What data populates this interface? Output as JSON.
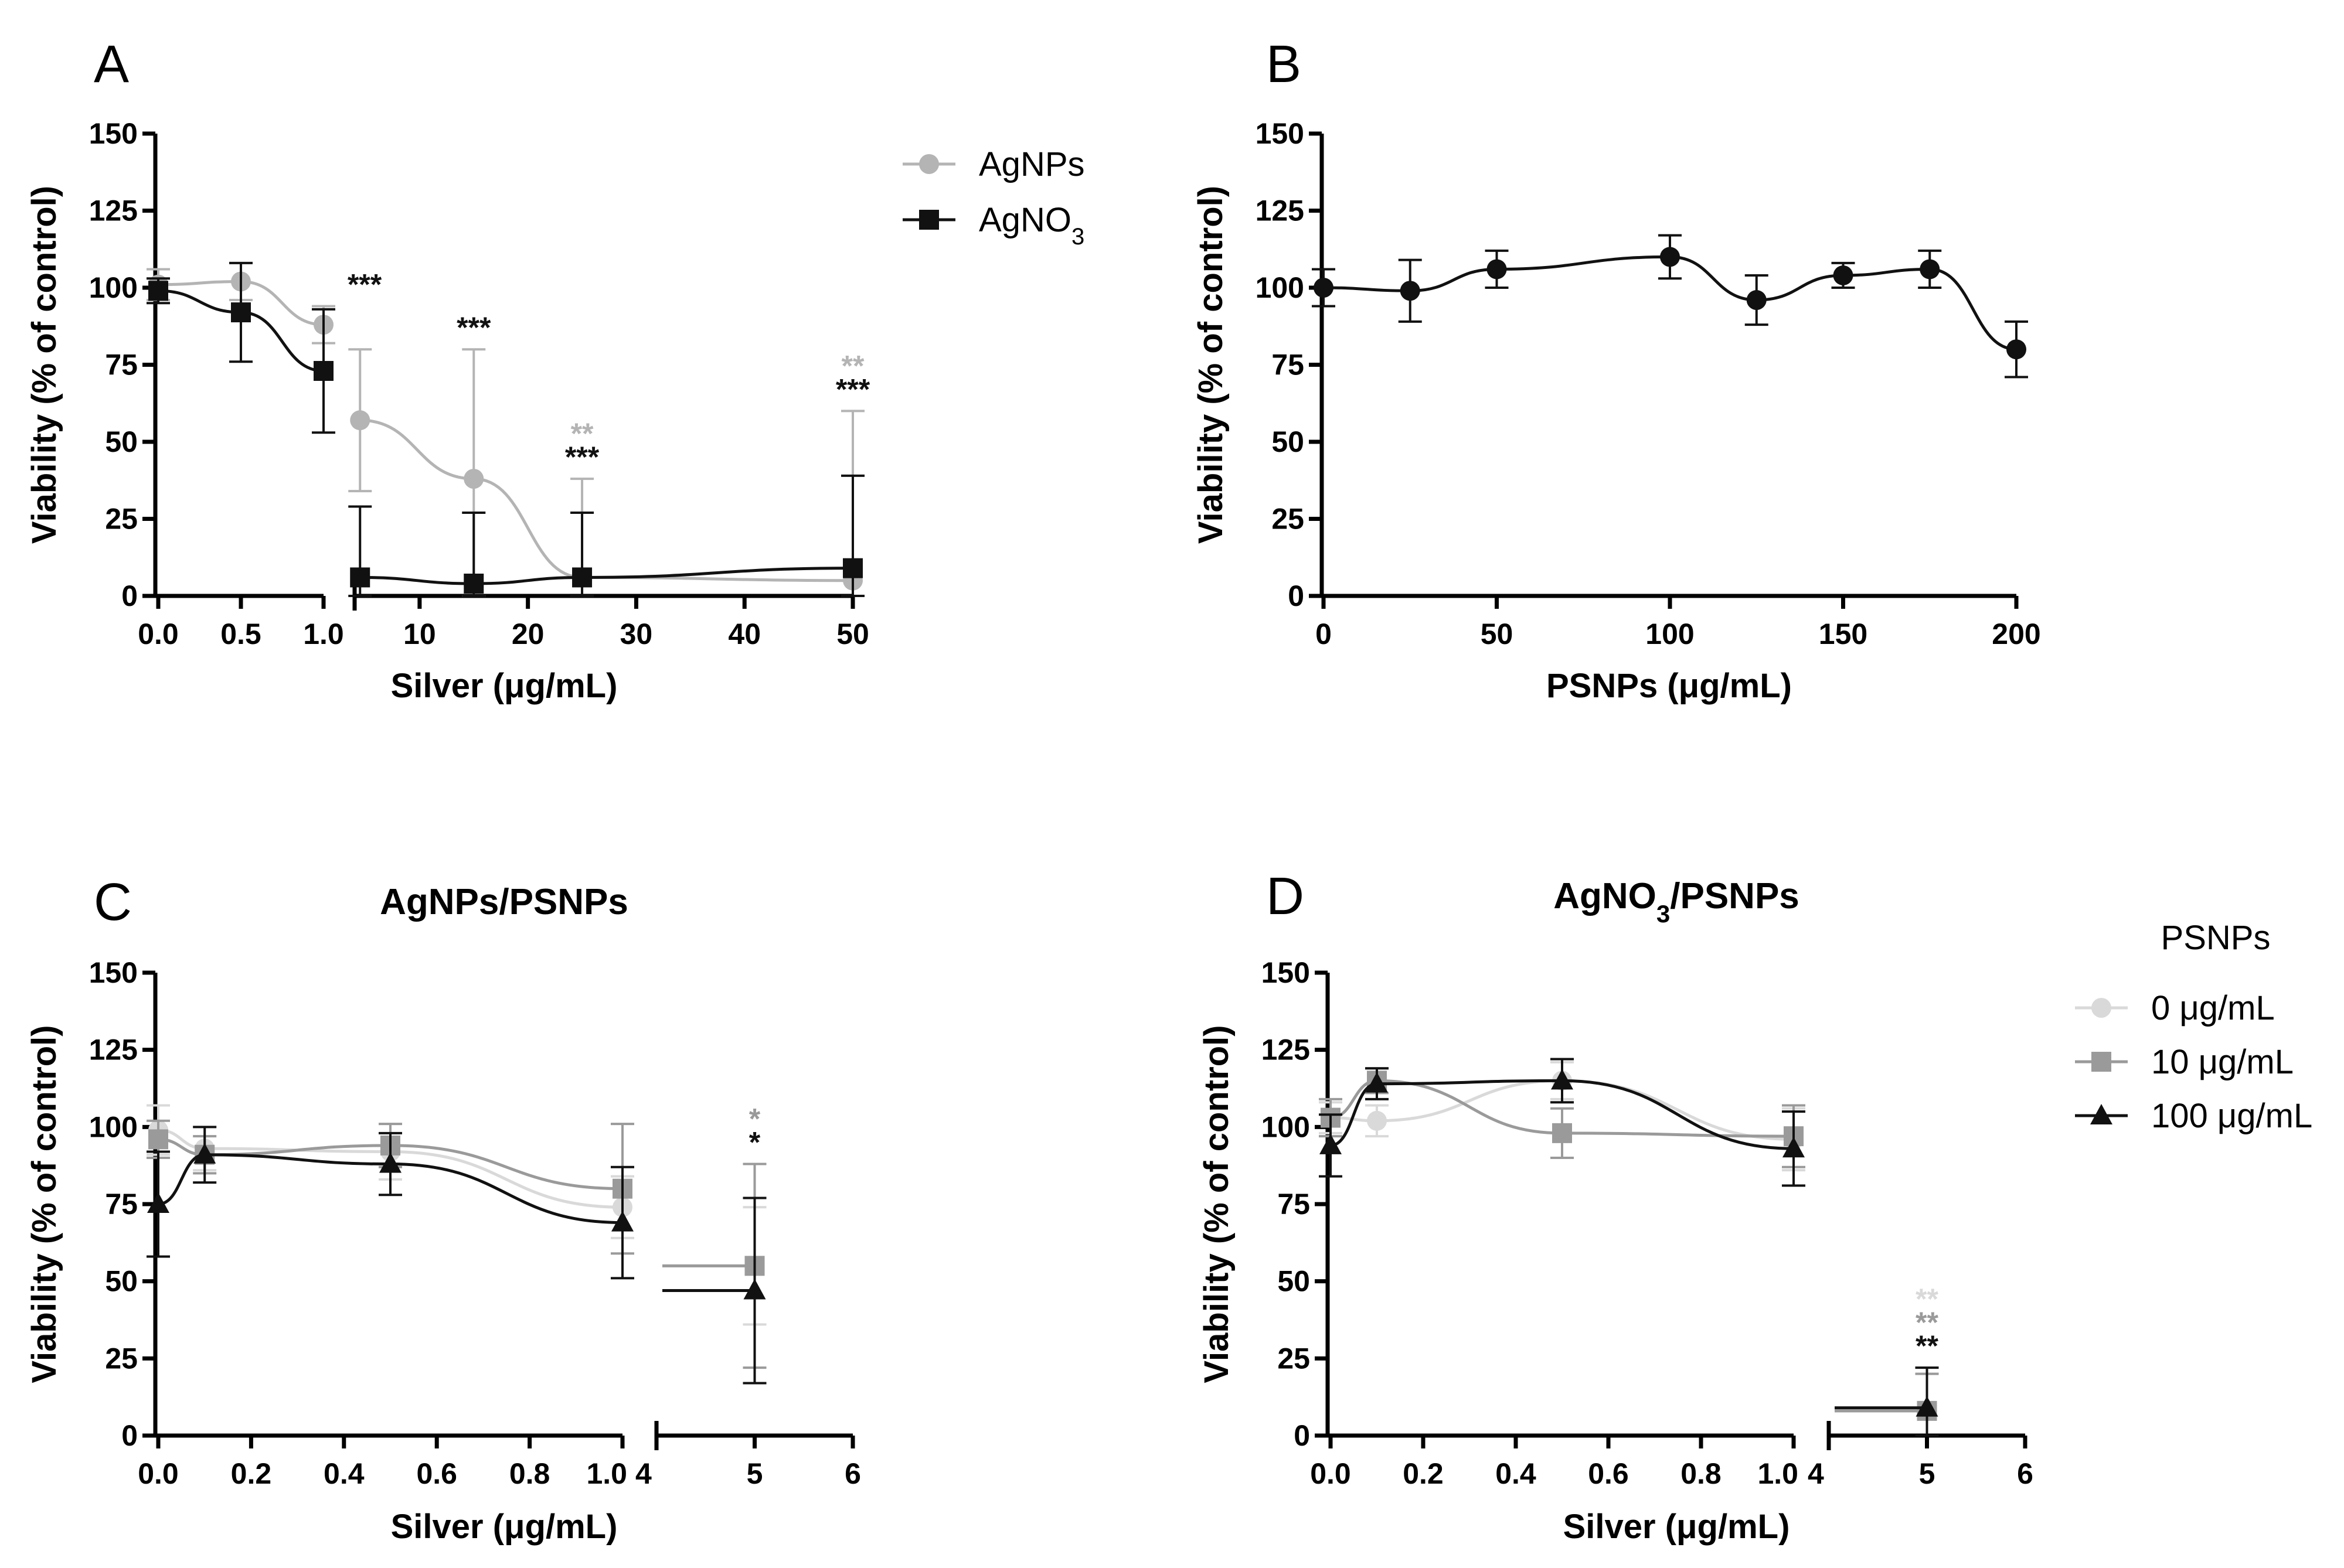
{
  "chart_data": [
    {
      "panel": "A",
      "type": "scatter",
      "title": "",
      "ylabel": "Viability (% of control)",
      "xlabel_parts": [
        "Silver (",
        "μg/mL)"
      ],
      "yticks": [
        "0",
        "25",
        "50",
        "75",
        "100",
        "125",
        "150"
      ],
      "ylim": [
        0,
        150
      ],
      "segments": [
        {
          "xlim": [
            0,
            1
          ],
          "xticks": [
            "0.0",
            "0.5",
            "1.0"
          ],
          "tick_values": [
            0,
            0.5,
            1.0
          ]
        },
        {
          "xlim": [
            4,
            50
          ],
          "xticks": [
            "10",
            "20",
            "30",
            "40",
            "50"
          ],
          "tick_values": [
            10,
            20,
            30,
            40,
            50
          ]
        }
      ],
      "legend": [
        {
          "name": "AgNPs",
          "marker": "circle",
          "color": "#b4b4b4"
        },
        {
          "name": "AgNO",
          "subscript": "3",
          "marker": "square",
          "color": "#111111"
        }
      ],
      "series": [
        {
          "name": "AgNPs",
          "color": "#b4b4b4",
          "marker": "circle",
          "x": [
            0,
            0.5,
            1.0,
            4.5,
            15,
            25,
            50
          ],
          "y": [
            101,
            102,
            88,
            57,
            38,
            6,
            5
          ],
          "err": [
            5,
            6,
            6,
            23,
            42,
            32,
            55
          ]
        },
        {
          "name": "AgNO3",
          "color": "#111111",
          "marker": "square",
          "x": [
            0,
            0.5,
            1.0,
            4.5,
            15,
            25,
            50
          ],
          "y": [
            99,
            92,
            73,
            6,
            4,
            6,
            9
          ],
          "err": [
            4,
            16,
            20,
            23,
            23,
            21,
            30
          ]
        }
      ],
      "annotations": [
        {
          "x": 1.0,
          "lines": [
            {
              "text": "***",
              "color": "#111111"
            }
          ]
        },
        {
          "x": 15,
          "lines": [
            {
              "text": "***",
              "color": "#111111"
            }
          ]
        },
        {
          "x": 25,
          "lines": [
            {
              "text": "**",
              "color": "#b4b4b4"
            },
            {
              "text": "***",
              "color": "#111111"
            }
          ]
        },
        {
          "x": 50,
          "lines": [
            {
              "text": "**",
              "color": "#b4b4b4"
            },
            {
              "text": "***",
              "color": "#111111"
            }
          ]
        }
      ]
    },
    {
      "panel": "B",
      "type": "scatter",
      "title": "",
      "ylabel": "Viability (% of control)",
      "xlabel_parts": [
        "PSNPs (",
        "μg/mL)"
      ],
      "yticks": [
        "0",
        "25",
        "50",
        "75",
        "100",
        "125",
        "150"
      ],
      "ylim": [
        0,
        150
      ],
      "segments": [
        {
          "xlim": [
            0,
            200
          ],
          "xticks": [
            "0",
            "50",
            "100",
            "150",
            "200"
          ],
          "tick_values": [
            0,
            50,
            100,
            150,
            200
          ]
        }
      ],
      "series": [
        {
          "name": "PSNPs",
          "color": "#111111",
          "marker": "circle",
          "x": [
            0,
            25,
            50,
            100,
            125,
            150,
            175,
            200
          ],
          "y": [
            100,
            99,
            106,
            110,
            96,
            104,
            106,
            80
          ],
          "err": [
            6,
            10,
            6,
            7,
            8,
            4,
            6,
            9
          ]
        }
      ]
    },
    {
      "panel": "C",
      "type": "scatter",
      "title": "AgNPs/PSNPs",
      "ylabel": "Viability (% of control)",
      "xlabel_parts": [
        "Silver (",
        "μg/mL)"
      ],
      "yticks": [
        "0",
        "25",
        "50",
        "75",
        "100",
        "125",
        "150"
      ],
      "ylim": [
        0,
        150
      ],
      "segments": [
        {
          "xlim": [
            0,
            1
          ],
          "xticks": [
            "0.0",
            "0.2",
            "0.4",
            "0.6",
            "0.8",
            "1.0"
          ],
          "tick_values": [
            0,
            0.2,
            0.4,
            0.6,
            0.8,
            1.0
          ]
        },
        {
          "xlim": [
            4,
            6
          ],
          "xticks": [
            "4",
            "5",
            "6"
          ],
          "tick_values": [
            4,
            5,
            6
          ]
        }
      ],
      "series": [
        {
          "name": "0 μg/mL",
          "color": "#d9d9d9",
          "marker": "circle",
          "x": [
            0,
            0.1,
            0.5,
            1.0,
            5
          ],
          "y": [
            99,
            93,
            92,
            74,
            55
          ],
          "err": [
            8,
            7,
            9,
            10,
            19
          ]
        },
        {
          "name": "10 μg/mL",
          "color": "#9a9a9a",
          "marker": "square",
          "x": [
            0,
            0.1,
            0.5,
            1.0,
            5
          ],
          "y": [
            96,
            91,
            94,
            80,
            55
          ],
          "err": [
            6,
            6,
            7,
            21,
            33
          ]
        },
        {
          "name": "100 μg/mL",
          "color": "#111111",
          "marker": "triangle",
          "x": [
            0,
            0.1,
            0.5,
            1.0,
            5
          ],
          "y": [
            75,
            91,
            88,
            69,
            47
          ],
          "err": [
            17,
            9,
            10,
            18,
            30
          ]
        }
      ],
      "annotations": [
        {
          "x": 5,
          "lines": [
            {
              "text": "*",
              "color": "#9a9a9a"
            },
            {
              "text": "*",
              "color": "#111111"
            }
          ]
        }
      ]
    },
    {
      "panel": "D",
      "type": "scatter",
      "title_parts": [
        "AgNO",
        "3",
        "/PSNPs"
      ],
      "ylabel": "Viability (% of control)",
      "xlabel_parts": [
        "Silver (",
        "μg/mL)"
      ],
      "yticks": [
        "0",
        "25",
        "50",
        "75",
        "100",
        "125",
        "150"
      ],
      "ylim": [
        0,
        150
      ],
      "segments": [
        {
          "xlim": [
            0,
            1
          ],
          "xticks": [
            "0.0",
            "0.2",
            "0.4",
            "0.6",
            "0.8",
            "1.0"
          ],
          "tick_values": [
            0,
            0.2,
            0.4,
            0.6,
            0.8,
            1.0
          ]
        },
        {
          "xlim": [
            4,
            6
          ],
          "xticks": [
            "4",
            "5",
            "6"
          ],
          "tick_values": [
            4,
            5,
            6
          ]
        }
      ],
      "legend_title": "PSNPs",
      "legend": [
        {
          "name": "0 μg/mL",
          "marker": "circle",
          "color": "#d9d9d9"
        },
        {
          "name": "10 μg/mL",
          "marker": "square",
          "color": "#9a9a9a"
        },
        {
          "name": "100 μg/mL",
          "marker": "triangle",
          "color": "#111111"
        }
      ],
      "series": [
        {
          "name": "0 μg/mL",
          "color": "#d9d9d9",
          "marker": "circle",
          "x": [
            0,
            0.1,
            0.5,
            1.0,
            5
          ],
          "y": [
            103,
            102,
            115,
            96,
            8
          ],
          "err": [
            5,
            5,
            6,
            10,
            12
          ]
        },
        {
          "name": "10 μg/mL",
          "color": "#9a9a9a",
          "marker": "square",
          "x": [
            0,
            0.1,
            0.5,
            1.0,
            5
          ],
          "y": [
            103,
            115,
            98,
            97,
            8
          ],
          "err": [
            6,
            4,
            8,
            10,
            12
          ]
        },
        {
          "name": "100 μg/mL",
          "color": "#111111",
          "marker": "triangle",
          "x": [
            0,
            0.1,
            0.5,
            1.0,
            5
          ],
          "y": [
            94,
            114,
            115,
            93,
            9
          ],
          "err": [
            10,
            5,
            7,
            12,
            13
          ]
        }
      ],
      "annotations": [
        {
          "x": 5,
          "lines": [
            {
              "text": "**",
              "color": "#d9d9d9"
            },
            {
              "text": "**",
              "color": "#9a9a9a"
            },
            {
              "text": "**",
              "color": "#111111"
            }
          ]
        }
      ]
    }
  ]
}
